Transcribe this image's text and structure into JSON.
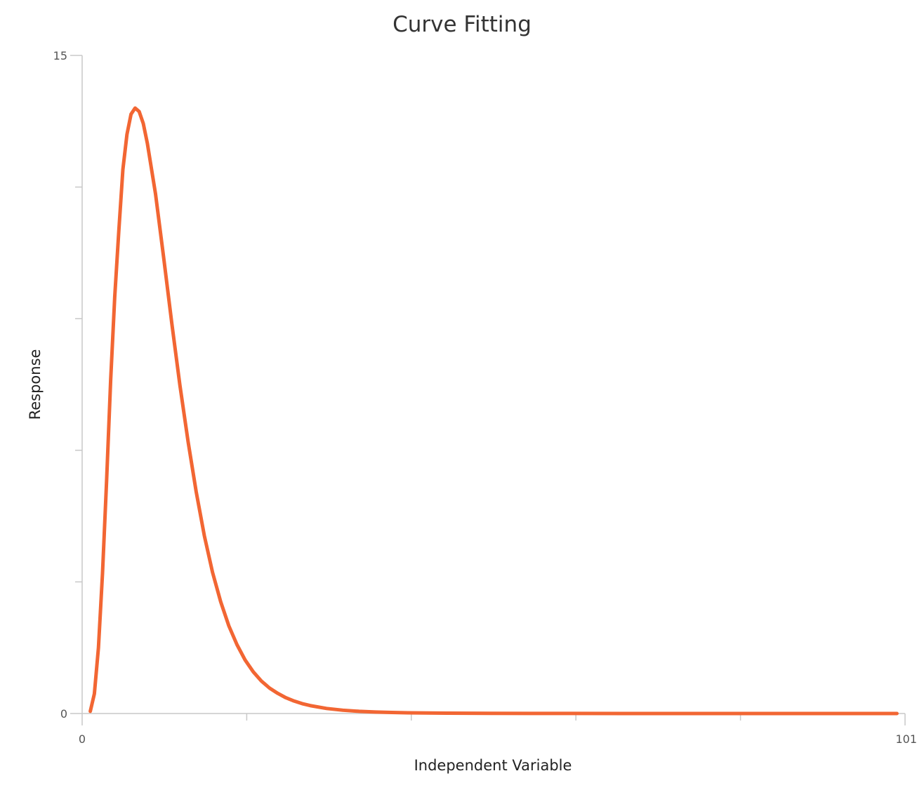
{
  "chart_data": {
    "type": "line",
    "title": "Curve Fitting",
    "xlabel": "Independent Variable",
    "ylabel": "Response",
    "xlim": [
      0,
      101
    ],
    "ylim": [
      0,
      15
    ],
    "x_tick_labels": [
      {
        "value": 0,
        "label": "0"
      },
      {
        "value": 101,
        "label": "101"
      }
    ],
    "y_tick_labels": [
      {
        "value": 0,
        "label": "0"
      },
      {
        "value": 15,
        "label": "15"
      }
    ],
    "x_minor_ticks": [
      20.2,
      40.4,
      60.6,
      80.8
    ],
    "y_minor_ticks": [
      3,
      6,
      9,
      12
    ],
    "grid": false,
    "legend": "none",
    "colors": {
      "series": "#f26633",
      "axis": "#c8c8c8"
    },
    "series": [
      {
        "x": [
          1,
          1.5,
          2,
          2.5,
          3,
          3.5,
          4,
          4.5,
          5,
          5.5,
          6,
          6.5,
          7,
          7.5,
          8,
          9,
          10,
          11,
          12,
          13,
          14,
          15,
          16,
          17,
          18,
          19,
          20,
          21,
          22,
          23,
          24,
          25,
          26,
          27,
          28,
          30,
          32,
          34,
          36,
          38,
          40,
          45,
          50,
          55,
          60,
          70,
          80,
          90,
          100
        ],
        "y": [
          0.05,
          0.45,
          1.5,
          3.2,
          5.3,
          7.6,
          9.5,
          11.0,
          12.4,
          13.2,
          13.66,
          13.8,
          13.72,
          13.45,
          13.0,
          11.85,
          10.4,
          8.9,
          7.48,
          6.2,
          5.05,
          4.05,
          3.22,
          2.55,
          2.0,
          1.57,
          1.22,
          0.95,
          0.74,
          0.58,
          0.46,
          0.36,
          0.285,
          0.225,
          0.18,
          0.115,
          0.075,
          0.05,
          0.034,
          0.024,
          0.017,
          0.008,
          0.004,
          0.0025,
          0.0015,
          0.0006,
          0.0003,
          0.0002,
          0.0001
        ]
      }
    ]
  }
}
